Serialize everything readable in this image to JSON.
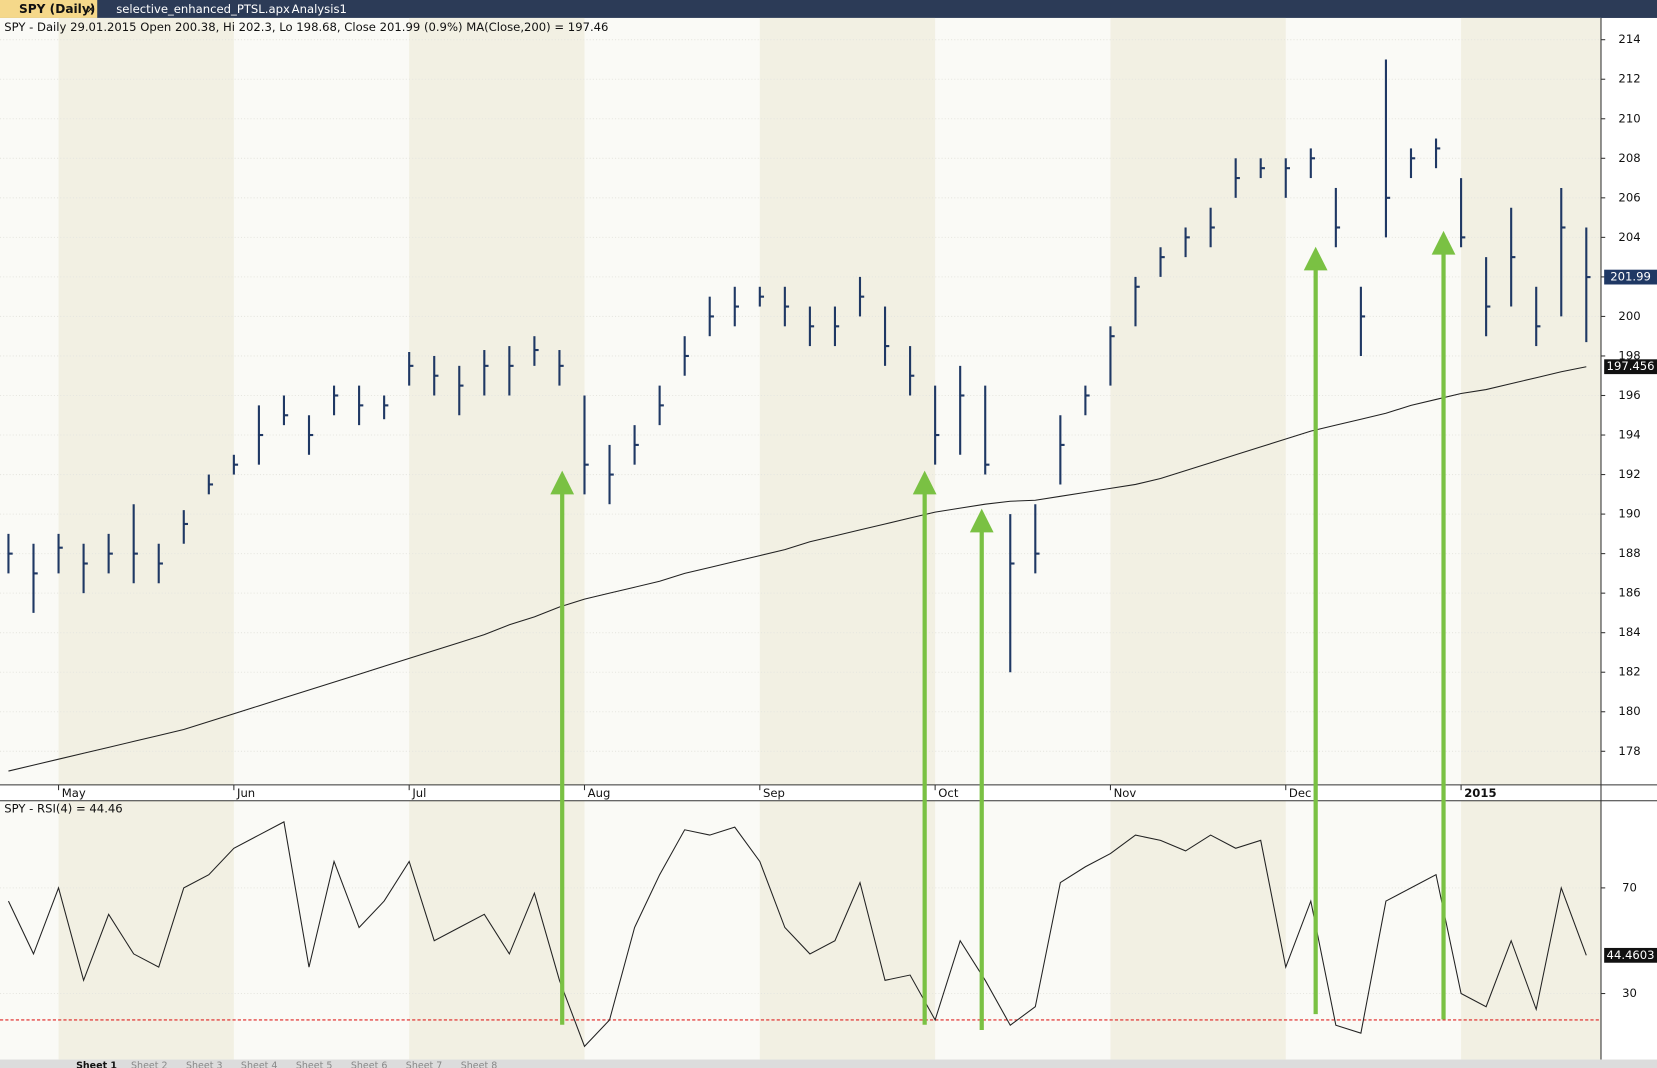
{
  "tabs": [
    "SPY (Daily)",
    "selective_enhanced_PTSL.apx",
    "Analysis1"
  ],
  "sheets": [
    "Sheet 1",
    "Sheet 2",
    "Sheet 3",
    "Sheet 4",
    "Sheet 5",
    "Sheet 6",
    "Sheet 7",
    "Sheet 8"
  ],
  "chart_data": [
    {
      "type": "ohlc",
      "title": "SPY - Daily 29.01.2015 Open 200.38, Hi 202.3, Lo 198.68, Close 201.99 (0.9%) MA(Close,200) = 197.46",
      "categories": [
        null,
        null,
        "May",
        null,
        null,
        null,
        null,
        null,
        null,
        "Jun",
        null,
        null,
        null,
        null,
        null,
        null,
        "Jul",
        null,
        null,
        null,
        null,
        null,
        null,
        "Aug",
        null,
        null,
        null,
        null,
        null,
        null,
        "Sep",
        null,
        null,
        null,
        null,
        null,
        null,
        "Oct",
        null,
        null,
        null,
        null,
        null,
        null,
        "Nov",
        null,
        null,
        null,
        null,
        null,
        null,
        "Dec",
        null,
        null,
        null,
        null,
        null,
        null,
        "2015",
        null,
        null,
        null,
        null,
        null
      ],
      "series": [
        {
          "name": "SPY",
          "color": "#1f3864",
          "high": [
            189,
            188.5,
            189,
            188.5,
            189,
            190.5,
            188.5,
            190.2,
            192,
            193,
            195.5,
            196,
            195,
            196.5,
            196.5,
            196,
            198.2,
            198,
            197.5,
            198.3,
            198.5,
            199,
            198.3,
            196,
            193.5,
            194.5,
            196.5,
            199,
            201,
            201.5,
            201.5,
            201.5,
            200.5,
            200.5,
            202,
            200.5,
            198.5,
            196.5,
            197.5,
            196.5,
            190,
            190.5,
            195,
            196.5,
            199.5,
            202,
            203.5,
            204.5,
            205.5,
            208,
            208,
            208,
            208.5,
            206.5,
            201.5,
            213,
            208.5,
            209,
            207,
            203,
            205.5,
            201.5,
            206.5,
            204.5
          ],
          "low": [
            187,
            185,
            187,
            186,
            187,
            186.5,
            186.5,
            188.5,
            191,
            192,
            192.5,
            194.5,
            193,
            195,
            194.5,
            194.8,
            196.5,
            196,
            195,
            196,
            196,
            197.5,
            196.5,
            191,
            190.5,
            192.5,
            194.5,
            197,
            199,
            199.5,
            200.5,
            199.5,
            198.5,
            198.5,
            200,
            197.5,
            196,
            192.5,
            193,
            192,
            182,
            187,
            191.5,
            195,
            196.5,
            199.5,
            202,
            203,
            203.5,
            206,
            207,
            206,
            207,
            203.5,
            198,
            204,
            207,
            207.5,
            203.5,
            199,
            200.5,
            198.5,
            200,
            198.7
          ],
          "close": [
            188,
            187,
            188.3,
            187.5,
            188,
            188,
            187.5,
            189.5,
            191.5,
            192.5,
            194,
            195,
            194,
            196,
            195.5,
            195.5,
            197.5,
            197,
            196.5,
            197.5,
            197.5,
            198.3,
            197.5,
            192.5,
            192,
            193.5,
            195.5,
            198,
            200,
            200.5,
            201,
            200.5,
            199.5,
            199.5,
            201,
            198.5,
            197,
            194,
            196,
            192.5,
            187.5,
            188,
            193.5,
            196,
            199,
            201.5,
            203,
            204,
            204.5,
            207,
            207.5,
            207.5,
            208,
            204.5,
            200,
            206,
            208,
            208.5,
            204,
            200.5,
            203,
            199.5,
            204.5,
            201.99
          ]
        },
        {
          "name": "MA(Close,200)",
          "color": "#222222",
          "values": [
            177.0,
            177.3,
            177.6,
            177.9,
            178.2,
            178.5,
            178.8,
            179.1,
            179.5,
            179.9,
            180.3,
            180.7,
            181.1,
            181.5,
            181.9,
            182.3,
            182.7,
            183.1,
            183.5,
            183.9,
            184.4,
            184.8,
            185.3,
            185.7,
            186.0,
            186.3,
            186.6,
            187.0,
            187.3,
            187.6,
            187.9,
            188.2,
            188.6,
            188.9,
            189.2,
            189.5,
            189.8,
            190.1,
            190.3,
            190.5,
            190.65,
            190.7,
            190.9,
            191.1,
            191.3,
            191.5,
            191.8,
            192.2,
            192.6,
            193.0,
            193.4,
            193.8,
            194.2,
            194.5,
            194.8,
            195.1,
            195.5,
            195.8,
            196.1,
            196.3,
            196.6,
            196.9,
            197.2,
            197.456
          ]
        }
      ],
      "ylim": [
        176.3,
        215.1
      ],
      "yticks": [
        178,
        180,
        182,
        184,
        186,
        188,
        190,
        192,
        194,
        196,
        198,
        200,
        202,
        204,
        206,
        208,
        210,
        212,
        214
      ],
      "grid": true
    },
    {
      "type": "line",
      "title": "SPY - RSI(4) = 44.46",
      "series": [
        {
          "name": "RSI(4)",
          "color": "#222222",
          "values": [
            65,
            45,
            70,
            35,
            60,
            45,
            40,
            70,
            75,
            85,
            90,
            95,
            40,
            80,
            55,
            65,
            80,
            50,
            55,
            60,
            45,
            68,
            35,
            10,
            20,
            55,
            75,
            92,
            90,
            93,
            80,
            55,
            45,
            50,
            72,
            35,
            37,
            20,
            50,
            35,
            18,
            25,
            72,
            78,
            83,
            90,
            88,
            84,
            90,
            85,
            88,
            40,
            65,
            18,
            15,
            65,
            70,
            75,
            30,
            25,
            50,
            24,
            70,
            44.4603
          ]
        }
      ],
      "threshold": 20,
      "threshold_color": "#e02020",
      "ylim": [
        5,
        103
      ],
      "yticks": [
        30,
        70
      ],
      "grid": true
    }
  ]
}
